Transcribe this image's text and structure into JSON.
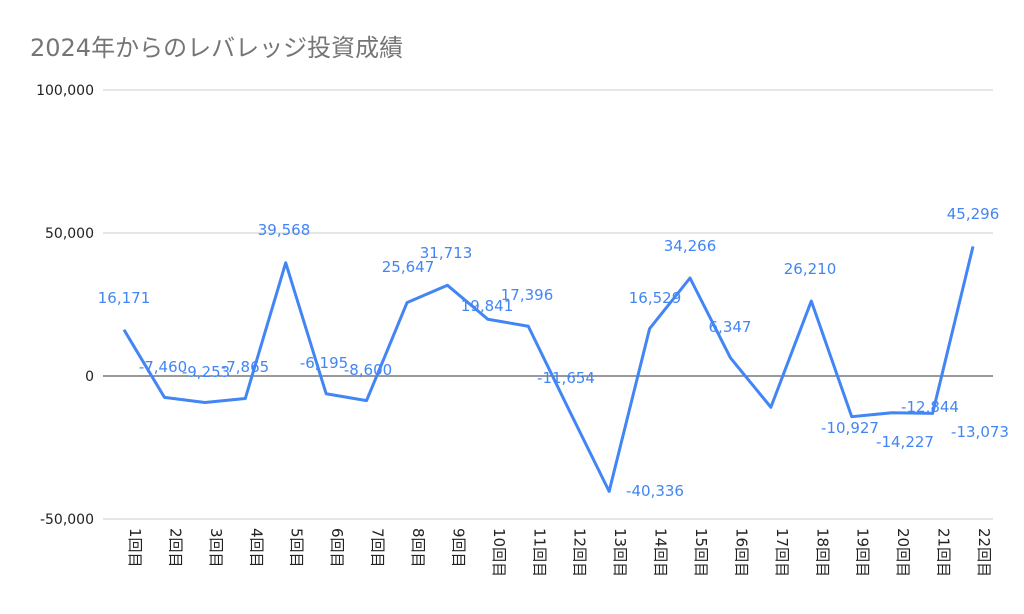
{
  "chart_data": {
    "type": "line",
    "title": "2024年からのレバレッジ投資成績",
    "categories": [
      "1回目",
      "2回目",
      "3回目",
      "4回目",
      "5回目",
      "6回目",
      "7回目",
      "8回目",
      "9回目",
      "10回目",
      "11回目",
      "12回目",
      "13回目",
      "14回目",
      "15回目",
      "16回目",
      "17回目",
      "18回目",
      "19回目",
      "20回目",
      "21回目",
      "22回目"
    ],
    "values": [
      16171,
      -7460,
      -9253,
      -7865,
      39568,
      -6195,
      -8600,
      25647,
      31713,
      19841,
      17396,
      -11654,
      -40336,
      16529,
      34266,
      6347,
      -10927,
      26210,
      -14227,
      -12844,
      -13073,
      45296
    ],
    "data_labels": [
      "16,171",
      "-7,460",
      "-9,253",
      "-7,865",
      "39,568",
      "-6,195",
      "-8,600",
      "25,647",
      "31,713",
      "19,841",
      "17,396",
      "-11,654",
      "-40,336",
      "16,529",
      "34,266",
      "6,347",
      "-10,927",
      "26,210",
      "-14,227",
      "-12,844",
      "-13,073",
      "45,296"
    ],
    "ylim": [
      -50000,
      100000
    ],
    "yticks": [
      "-50,000",
      "0",
      "50,000",
      "100,000"
    ],
    "grid": true,
    "line_color": "#4285f4",
    "xlabel": "",
    "ylabel": ""
  }
}
